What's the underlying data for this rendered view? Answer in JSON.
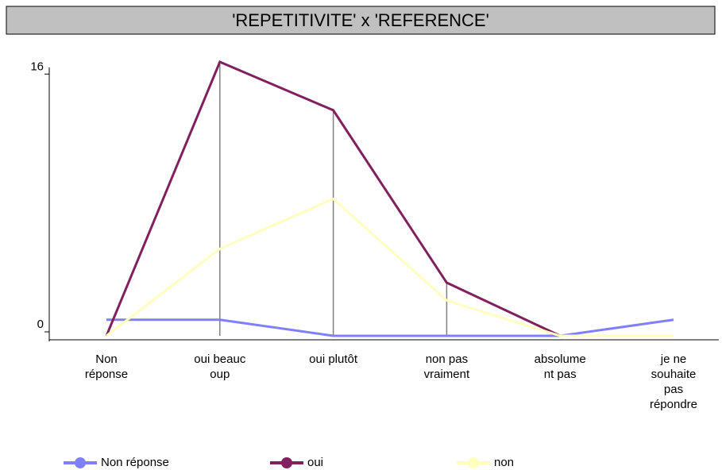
{
  "chart_data": {
    "type": "line",
    "title": "'REPETITIVITE' x 'REFERENCE'",
    "categories": [
      "Non\nréponse",
      "oui beauc\noup",
      "oui plutôt",
      "non pas\nvraiment",
      "absolume\nnt pas",
      "je ne\nsouhaite\npas\nrépondre"
    ],
    "series": [
      {
        "name": "Non réponse",
        "color": "#8080ff",
        "values": [
          1,
          1,
          0,
          0,
          0,
          1
        ]
      },
      {
        "name": "oui",
        "color": "#80205f",
        "values": [
          0,
          17,
          14,
          3.3,
          0,
          null
        ]
      },
      {
        "name": "non",
        "color": "#ffffc0",
        "values": [
          0,
          5.4,
          8.5,
          2.2,
          0,
          0
        ]
      }
    ],
    "ylim": [
      0,
      17
    ],
    "yticks": [
      0,
      16
    ],
    "legend": "bottom"
  }
}
